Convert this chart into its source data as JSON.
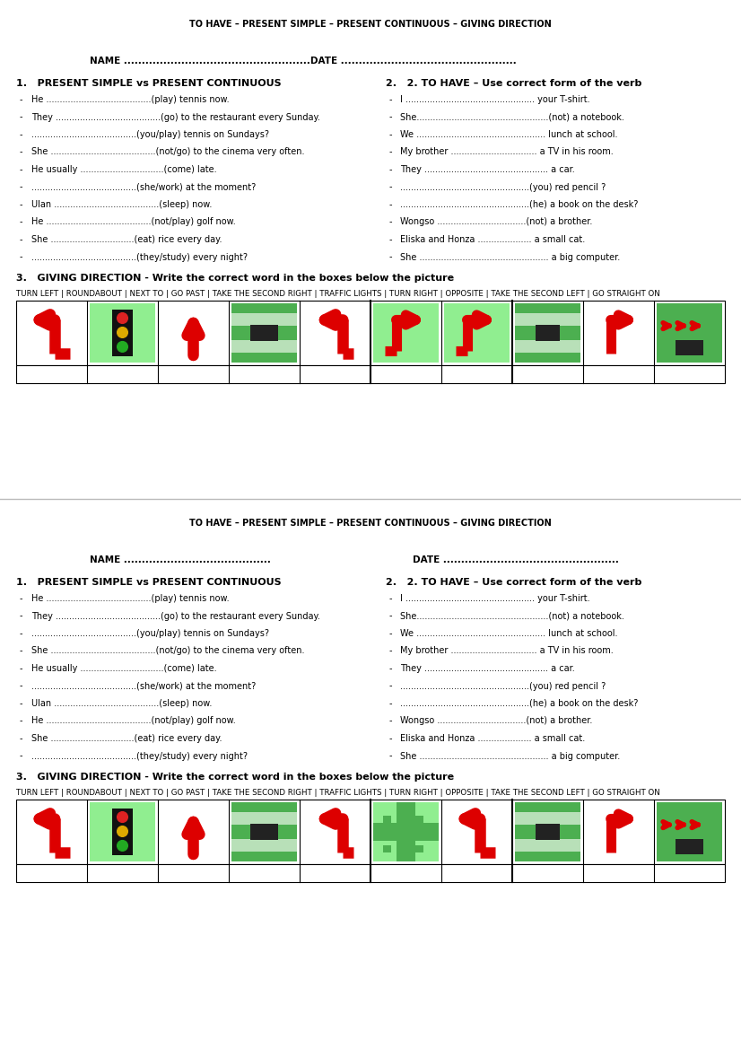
{
  "title": "TO HAVE – PRESENT SIMPLE – PRESENT CONTINUOUS – GIVING DIRECTION",
  "section1_header": "1.   PRESENT SIMPLE vs PRESENT CONTINUOUS",
  "section2_header": "2.   2. TO HAVE – Use correct form of the verb",
  "section3_header": "3.   GIVING DIRECTION - Write the correct word in the boxes below the picture",
  "section1_items_ws1": [
    "He .......................................(play) tennis now.",
    "They .......................................(go) to the restaurant every Sunday.",
    ".......................................(you/play) tennis on Sundays?",
    "She .......................................(not/go) to the cinema very often.",
    "He usually ...............................(come) late.",
    ".......................................(she/work) at the moment?",
    "Ulan .......................................(sleep) now.",
    "He .......................................(not/play) golf now.",
    "She ...............................(eat) rice every day.",
    ".......................................(they/study) every night?"
  ],
  "section2_items_ws1": [
    "I ................................................ your T-shirt.",
    "She.................................................(not) a notebook.",
    "We ................................................ lunch at school.",
    "My brother ................................ a TV in his room.",
    "They .............................................. a car.",
    "................................................(you) red pencil ?",
    "................................................(he) a book on the desk?",
    "Wongso .................................(not) a brother.",
    "Eliska and Honza .................... a small cat.",
    "She ................................................ a big computer."
  ],
  "word_bank": "TURN LEFT | ROUNDABOUT | NEXT TO | GO PAST | TAKE THE SECOND RIGHT | TRAFFIC LIGHTS | TURN RIGHT | OPPOSITE | TAKE THE SECOND LEFT | GO STRAIGHT ON",
  "background_color": "#ffffff",
  "text_color": "#000000",
  "green_main": "#4caf50",
  "green_light": "#90ee90",
  "green_pale": "#b8e0b8",
  "red_color": "#dd0000",
  "dark_gray": "#222222",
  "traffic_red": "#dd2222",
  "traffic_yellow": "#ddaa00",
  "traffic_green": "#22aa22",
  "road_color": "#aaddaa"
}
